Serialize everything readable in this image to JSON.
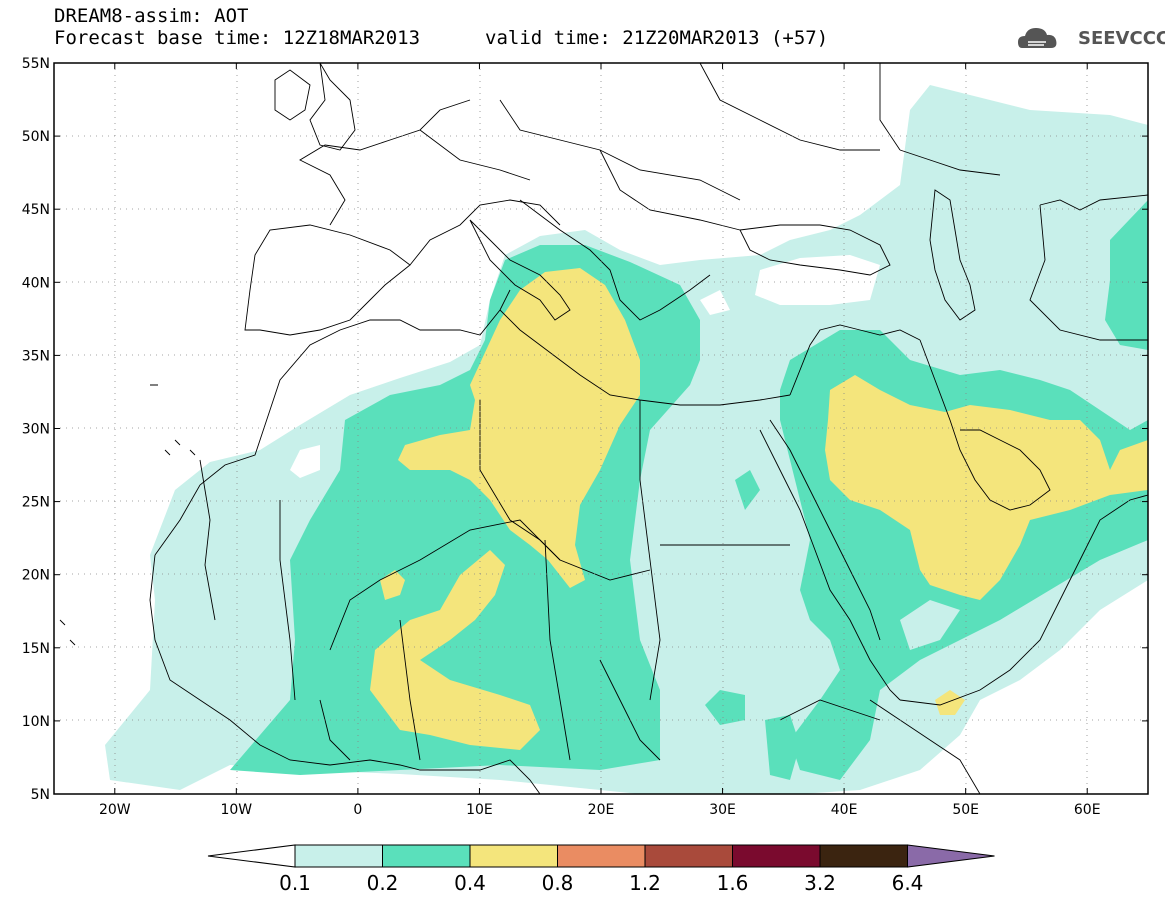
{
  "header": {
    "title_line1": "DREAM8-assim: AOT",
    "title_line2": "Forecast base time: 12Z18MAR2013",
    "valid_time": "valid time: 21Z20MAR2013 (+57)",
    "logo_text": "SEEVCCC",
    "logo_icon": "cloud-logo-icon"
  },
  "axes": {
    "lat_labels": [
      "55N",
      "50N",
      "45N",
      "40N",
      "35N",
      "30N",
      "25N",
      "20N",
      "15N",
      "10N",
      "5N"
    ],
    "lon_labels": [
      "20W",
      "10W",
      "0",
      "10E",
      "20E",
      "30E",
      "40E",
      "50E",
      "60E"
    ],
    "lat_range": [
      5,
      55
    ],
    "lon_range": [
      -25,
      65
    ]
  },
  "colorbar": {
    "levels": [
      "0.1",
      "0.2",
      "0.4",
      "0.8",
      "1.2",
      "1.6",
      "3.2",
      "6.4"
    ],
    "colors": [
      "#ffffff",
      "#c8f0ea",
      "#5ae0bb",
      "#f4e57c",
      "#ea8c62",
      "#a94a3b",
      "#7a0a2e",
      "#3b2410",
      "#8a6aa8"
    ]
  },
  "colors": {
    "level1": "#c8f0ea",
    "level2": "#5ae0bb",
    "level3": "#f4e57c",
    "border": "#000000",
    "grid": "#888888"
  }
}
